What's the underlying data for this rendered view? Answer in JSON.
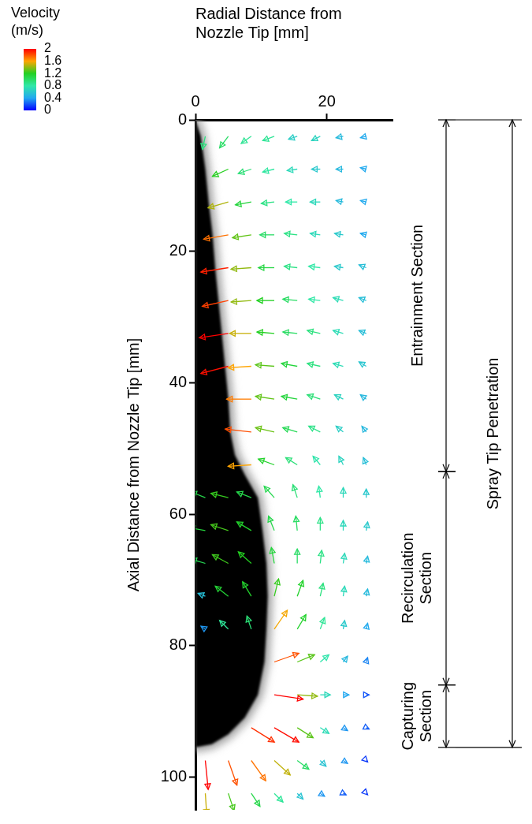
{
  "chart_data": {
    "type": "quiver",
    "xlabel": "Radial Distance from Nozzle Tip [mm]",
    "ylabel": "Axial Distance from Nozzle Tip [mm]",
    "xlim": [
      0,
      30
    ],
    "xticks": [
      0,
      20
    ],
    "ylim": [
      0,
      105
    ],
    "yticks": [
      0,
      20,
      40,
      60,
      80,
      100
    ],
    "grid": false,
    "colorbar": {
      "title": "Velocity (m/s)",
      "range": [
        0,
        2
      ],
      "ticks": [
        0,
        0.4,
        0.8,
        1.2,
        1.6,
        2
      ],
      "colors": [
        "#0000ff",
        "#22a8f0",
        "#30e8a8",
        "#22d022",
        "#ffa500",
        "#ff0000"
      ]
    },
    "spray_boundary": [
      [
        0,
        0
      ],
      [
        0.8,
        2.5
      ],
      [
        1.5,
        7.5
      ],
      [
        2,
        12.5
      ],
      [
        2.6,
        17.5
      ],
      [
        3,
        22.5
      ],
      [
        3.5,
        27.5
      ],
      [
        4,
        32.5
      ],
      [
        4.5,
        37.5
      ],
      [
        5,
        42.5
      ],
      [
        5.3,
        47.5
      ],
      [
        6,
        51
      ],
      [
        7.5,
        54
      ],
      [
        9.5,
        57.5
      ],
      [
        10.2,
        62.5
      ],
      [
        10.8,
        67.5
      ],
      [
        11,
        72.5
      ],
      [
        10.8,
        77.5
      ],
      [
        10.5,
        82.5
      ],
      [
        9.5,
        87.5
      ],
      [
        7.5,
        91
      ],
      [
        5,
        93.5
      ],
      [
        2.5,
        95
      ],
      [
        0,
        95.5
      ]
    ],
    "vectors": [
      [
        1.5,
        2.5,
        -0.2,
        0.9
      ],
      [
        5,
        2.5,
        -0.6,
        0.8
      ],
      [
        8.5,
        2.5,
        -0.7,
        0.5
      ],
      [
        12,
        2.5,
        -0.8,
        0.3
      ],
      [
        15.5,
        2.5,
        -0.6,
        0.2
      ],
      [
        19,
        2.5,
        -0.6,
        0.3
      ],
      [
        22.5,
        2.5,
        -0.5,
        0.1
      ],
      [
        26,
        2.5,
        -0.4,
        0.1
      ],
      [
        5,
        7.5,
        -1.1,
        0.5
      ],
      [
        8.5,
        7.5,
        -0.9,
        0.3
      ],
      [
        12,
        7.5,
        -0.8,
        0.2
      ],
      [
        15.5,
        7.5,
        -0.7,
        0.1
      ],
      [
        19,
        7.5,
        -0.6,
        0
      ],
      [
        22.5,
        7.5,
        -0.5,
        0
      ],
      [
        26,
        7.5,
        -0.4,
        -0.1
      ],
      [
        5,
        12.5,
        -1.4,
        0.4
      ],
      [
        8.5,
        12.5,
        -1.1,
        0.2
      ],
      [
        12,
        12.5,
        -0.9,
        0.1
      ],
      [
        15.5,
        12.5,
        -0.8,
        0
      ],
      [
        19,
        12.5,
        -0.7,
        0
      ],
      [
        22.5,
        12.5,
        -0.5,
        -0.1
      ],
      [
        26,
        12.5,
        -0.4,
        -0.1
      ],
      [
        5,
        17.5,
        -1.7,
        0.3
      ],
      [
        8.5,
        17.5,
        -1.3,
        0.2
      ],
      [
        12,
        17.5,
        -1.0,
        0
      ],
      [
        15.5,
        17.5,
        -0.9,
        -0.1
      ],
      [
        19,
        17.5,
        -0.7,
        -0.1
      ],
      [
        22.5,
        17.5,
        -0.6,
        -0.1
      ],
      [
        26,
        17.5,
        -0.4,
        -0.1
      ],
      [
        5,
        22.5,
        -1.9,
        0.3
      ],
      [
        8.5,
        22.5,
        -1.4,
        0.1
      ],
      [
        12,
        22.5,
        -1.1,
        0
      ],
      [
        15.5,
        22.5,
        -0.9,
        -0.1
      ],
      [
        19,
        22.5,
        -0.8,
        -0.1
      ],
      [
        22.5,
        22.5,
        -0.6,
        -0.1
      ],
      [
        26,
        22.5,
        -0.5,
        -0.2
      ],
      [
        5,
        27.5,
        -1.8,
        0.4
      ],
      [
        8.5,
        27.5,
        -1.4,
        0.1
      ],
      [
        12,
        27.5,
        -1.2,
        0
      ],
      [
        15.5,
        27.5,
        -1.0,
        -0.1
      ],
      [
        19,
        27.5,
        -0.8,
        -0.1
      ],
      [
        22.5,
        27.5,
        -0.7,
        -0.2
      ],
      [
        26,
        27.5,
        -0.5,
        -0.2
      ],
      [
        5,
        32.5,
        -2.0,
        0.3
      ],
      [
        8.5,
        32.5,
        -1.5,
        0
      ],
      [
        12,
        32.5,
        -1.2,
        -0.1
      ],
      [
        15.5,
        32.5,
        -1.0,
        -0.1
      ],
      [
        19,
        32.5,
        -0.9,
        -0.2
      ],
      [
        22.5,
        32.5,
        -0.7,
        -0.2
      ],
      [
        26,
        32.5,
        -0.5,
        -0.2
      ],
      [
        5,
        37.5,
        -1.9,
        0.5
      ],
      [
        8.5,
        37.5,
        -1.6,
        0.1
      ],
      [
        12,
        37.5,
        -1.3,
        -0.1
      ],
      [
        15.5,
        37.5,
        -1.1,
        -0.2
      ],
      [
        19,
        37.5,
        -0.9,
        -0.2
      ],
      [
        22.5,
        37.5,
        -0.7,
        -0.2
      ],
      [
        26,
        37.5,
        -0.5,
        -0.3
      ],
      [
        8.5,
        42.5,
        -1.7,
        0
      ],
      [
        12,
        42.5,
        -1.3,
        -0.2
      ],
      [
        15.5,
        42.5,
        -1.1,
        -0.2
      ],
      [
        19,
        42.5,
        -0.9,
        -0.3
      ],
      [
        22.5,
        42.5,
        -0.6,
        -0.3
      ],
      [
        26,
        42.5,
        -0.4,
        -0.3
      ],
      [
        8.5,
        47.5,
        -1.8,
        -0.2
      ],
      [
        12,
        47.5,
        -1.3,
        -0.3
      ],
      [
        15.5,
        47.5,
        -1.0,
        -0.3
      ],
      [
        19,
        47.5,
        -0.8,
        -0.4
      ],
      [
        22.5,
        47.5,
        -0.5,
        -0.4
      ],
      [
        26,
        47.5,
        -0.3,
        -0.4
      ],
      [
        8.5,
        52.5,
        -1.6,
        0.1
      ],
      [
        12,
        52.5,
        -1.1,
        -0.4
      ],
      [
        15.5,
        52.5,
        -0.8,
        -0.5
      ],
      [
        19,
        52.5,
        -0.5,
        -0.6
      ],
      [
        22.5,
        52.5,
        -0.3,
        -0.6
      ],
      [
        26,
        52.5,
        -0.2,
        -0.5
      ],
      [
        1.5,
        57.5,
        -1.0,
        -0.4
      ],
      [
        5,
        57.5,
        -1.2,
        -0.3
      ],
      [
        8.5,
        57.5,
        -1.0,
        -0.4
      ],
      [
        12,
        57.5,
        -0.7,
        -0.8
      ],
      [
        15.5,
        57.5,
        -0.3,
        -0.9
      ],
      [
        19,
        57.5,
        -0.1,
        -0.8
      ],
      [
        22.5,
        57.5,
        0,
        -0.7
      ],
      [
        26,
        57.5,
        0,
        -0.6
      ],
      [
        1.5,
        62.5,
        -1.1,
        -0.2
      ],
      [
        5,
        62.5,
        -1.2,
        -0.4
      ],
      [
        8.5,
        62.5,
        -1.0,
        -0.6
      ],
      [
        12,
        62.5,
        -0.4,
        -1.0
      ],
      [
        15.5,
        62.5,
        -0.1,
        -1.0
      ],
      [
        19,
        62.5,
        0,
        -0.9
      ],
      [
        22.5,
        62.5,
        0,
        -0.7
      ],
      [
        26,
        62.5,
        0.1,
        -0.6
      ],
      [
        1.5,
        67.5,
        -1.0,
        -0.3
      ],
      [
        5,
        67.5,
        -1.1,
        -0.6
      ],
      [
        8.5,
        67.5,
        -0.9,
        -0.8
      ],
      [
        12,
        67.5,
        -0.2,
        -1.1
      ],
      [
        15.5,
        67.5,
        0,
        -1.0
      ],
      [
        19,
        67.5,
        0.1,
        -0.9
      ],
      [
        22.5,
        67.5,
        0.1,
        -0.7
      ],
      [
        26,
        67.5,
        0.1,
        -0.5
      ],
      [
        1.5,
        72.5,
        -0.5,
        -0.2
      ],
      [
        5,
        72.5,
        -0.9,
        -0.7
      ],
      [
        8.5,
        72.5,
        -0.6,
        -1.0
      ],
      [
        12,
        72.5,
        0.3,
        -1.2
      ],
      [
        15.5,
        72.5,
        0.4,
        -1.1
      ],
      [
        19,
        72.5,
        0.2,
        -0.9
      ],
      [
        22.5,
        72.5,
        0.1,
        -0.7
      ],
      [
        26,
        72.5,
        0.1,
        -0.5
      ],
      [
        1.5,
        77.5,
        -0.3,
        -0.2
      ],
      [
        5,
        77.5,
        -0.6,
        -0.6
      ],
      [
        8.5,
        77.5,
        -0.3,
        -0.9
      ],
      [
        12,
        77.5,
        0.9,
        -1.3
      ],
      [
        15.5,
        77.5,
        0.6,
        -1.0
      ],
      [
        19,
        77.5,
        0.3,
        -0.8
      ],
      [
        22.5,
        77.5,
        0.1,
        -0.6
      ],
      [
        26,
        77.5,
        0.1,
        -0.4
      ],
      [
        12,
        82.5,
        1.7,
        -0.6
      ],
      [
        15.5,
        82.5,
        1.2,
        -0.5
      ],
      [
        19,
        82.5,
        0.6,
        -0.5
      ],
      [
        22.5,
        82.5,
        0.3,
        -0.4
      ],
      [
        26,
        82.5,
        0.1,
        -0.3
      ],
      [
        12,
        87.5,
        2.0,
        0.3
      ],
      [
        15.5,
        87.5,
        1.4,
        0.1
      ],
      [
        19,
        87.5,
        0.7,
        0
      ],
      [
        22.5,
        87.5,
        0.4,
        0
      ],
      [
        26,
        87.5,
        0.2,
        0
      ],
      [
        8.5,
        92.5,
        1.6,
        1.0
      ],
      [
        12,
        92.5,
        1.7,
        1.0
      ],
      [
        15.5,
        92.5,
        1.1,
        0.7
      ],
      [
        19,
        92.5,
        0.6,
        0.4
      ],
      [
        22.5,
        92.5,
        0.3,
        0.2
      ],
      [
        26,
        92.5,
        0.2,
        0.1
      ],
      [
        1.5,
        97.5,
        0.2,
        2.0
      ],
      [
        5,
        97.5,
        0.6,
        1.7
      ],
      [
        8.5,
        97.5,
        1.0,
        1.4
      ],
      [
        12,
        97.5,
        1.1,
        1.0
      ],
      [
        15.5,
        97.5,
        0.8,
        0.6
      ],
      [
        19,
        97.5,
        0.4,
        0.4
      ],
      [
        22.5,
        97.5,
        0.3,
        0.2
      ],
      [
        26,
        97.5,
        0.1,
        0.1
      ],
      [
        1.5,
        102.5,
        0.1,
        1.5
      ],
      [
        5,
        102.5,
        0.4,
        1.2
      ],
      [
        8.5,
        102.5,
        0.6,
        0.9
      ],
      [
        12,
        102.5,
        0.6,
        0.6
      ],
      [
        15.5,
        102.5,
        0.4,
        0.4
      ],
      [
        19,
        102.5,
        0.3,
        0.2
      ],
      [
        22.5,
        102.5,
        0.2,
        0.1
      ],
      [
        26,
        102.5,
        0.1,
        0.1
      ]
    ],
    "sections": [
      {
        "label": "Entrainment Section",
        "from": 0,
        "to": 53.5
      },
      {
        "label": "Recirculation Section",
        "from": 53.5,
        "to": 86
      },
      {
        "label": "Capturing Section",
        "from": 86,
        "to": 95.5
      }
    ],
    "spray_tip_penetration": {
      "label": "Spray Tip Penetration",
      "from": 0,
      "to": 95.5
    }
  }
}
